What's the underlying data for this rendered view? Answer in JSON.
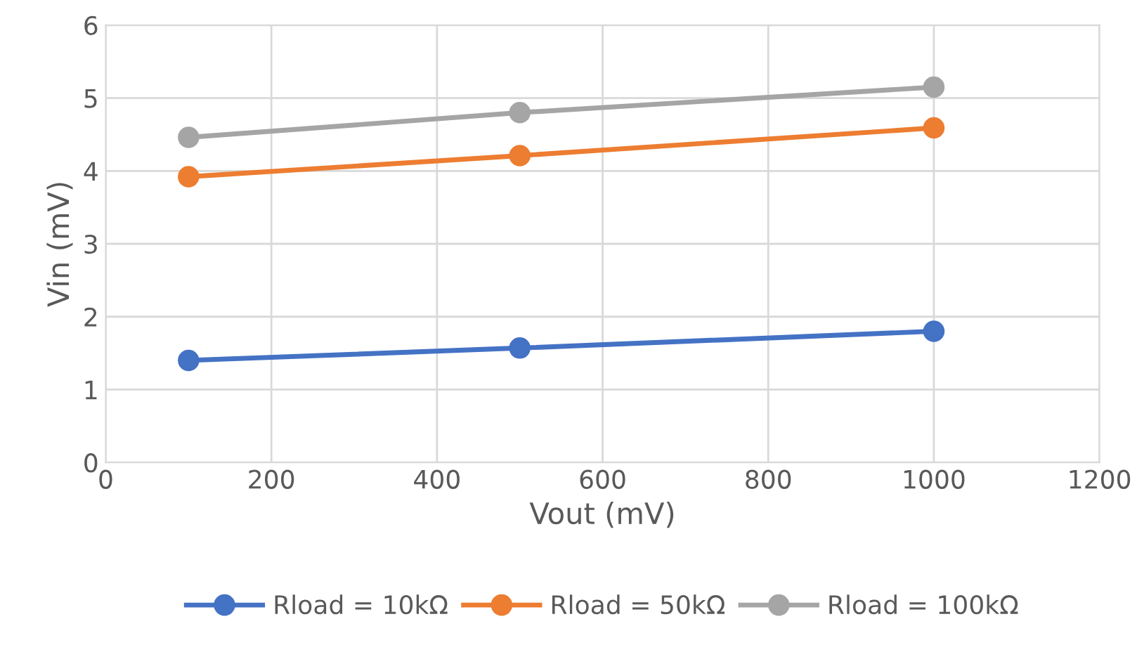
{
  "chart_data": {
    "type": "line",
    "xlabel": "Vout (mV)",
    "ylabel": "Vin (mV)",
    "x": [
      100,
      500,
      1000
    ],
    "series": [
      {
        "name": "Rload = 10kΩ",
        "color": "#4472c4",
        "values": [
          1.4,
          1.57,
          1.8
        ]
      },
      {
        "name": "Rload = 50kΩ",
        "color": "#ed7d31",
        "values": [
          3.92,
          4.21,
          4.59
        ]
      },
      {
        "name": "Rload = 100kΩ",
        "color": "#a5a5a5",
        "values": [
          4.46,
          4.8,
          5.15
        ]
      }
    ],
    "xlim": [
      0,
      1200
    ],
    "xticks": [
      0,
      200,
      400,
      600,
      800,
      1000,
      1200
    ],
    "ylim": [
      0,
      6
    ],
    "yticks": [
      0,
      1,
      2,
      3,
      4,
      5,
      6
    ],
    "grid": true,
    "legend": "bottom",
    "marker": "circle",
    "line_style": "solid"
  }
}
